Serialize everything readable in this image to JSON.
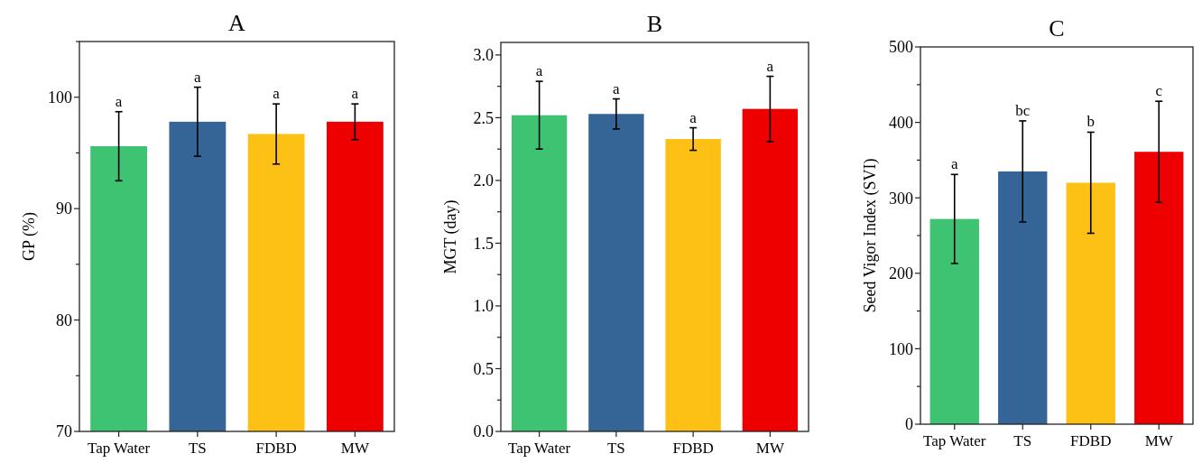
{
  "chart_data": [
    {
      "type": "bar",
      "title": "A",
      "ylabel": "GP (%)",
      "categories": [
        "Tap Water",
        "TS",
        "FDBD",
        "MW"
      ],
      "values": [
        95.6,
        97.8,
        96.7,
        97.8
      ],
      "colors": [
        "#3dc371",
        "#346596",
        "#fcc114",
        "#ee0000"
      ],
      "errors": [
        3.1,
        3.1,
        2.7,
        1.6
      ],
      "ylim": [
        70,
        105
      ],
      "yticks": [
        70,
        {
          "value": 75,
          "label": null
        },
        80,
        {
          "value": 85,
          "label": null
        },
        90,
        {
          "value": 95,
          "label": null
        },
        100,
        {
          "value": 105,
          "label": null
        }
      ],
      "annotations": [
        {
          "text": "a",
          "x": "Tap Water",
          "y": 98.7
        },
        {
          "text": "a",
          "x": "TS",
          "y": 100.9
        },
        {
          "text": "a",
          "x": "FDBD",
          "y": 99.4
        },
        {
          "text": "a",
          "x": "MW",
          "y": 99.4
        }
      ]
    },
    {
      "type": "bar",
      "title": "B",
      "ylabel": "MGT (day)",
      "categories": [
        "Tap Water",
        "TS",
        "FDBD",
        "MW"
      ],
      "values": [
        2.52,
        2.53,
        2.33,
        2.57
      ],
      "colors": [
        "#3dc371",
        "#346596",
        "#fcc114",
        "#ee0000"
      ],
      "errors": [
        0.27,
        0.12,
        0.09,
        0.26
      ],
      "ylim": [
        0,
        3.1
      ],
      "yticks": [
        {
          "value": 0,
          "label": "0.0"
        },
        {
          "value": 0.25,
          "label": null
        },
        {
          "value": 0.5,
          "label": "0.5"
        },
        {
          "value": 0.75,
          "label": null
        },
        {
          "value": 1,
          "label": "1.0"
        },
        {
          "value": 1.25,
          "label": null
        },
        {
          "value": 1.5,
          "label": "1.5"
        },
        {
          "value": 1.75,
          "label": null
        },
        {
          "value": 2,
          "label": "2.0"
        },
        {
          "value": 2.25,
          "label": null
        },
        {
          "value": 2.5,
          "label": "2.5"
        },
        {
          "value": 2.75,
          "label": null
        },
        {
          "value": 3,
          "label": "3.0"
        }
      ],
      "annotations": [
        {
          "text": "a",
          "x": "Tap Water",
          "y": 2.79
        },
        {
          "text": "a",
          "x": "TS",
          "y": 2.65
        },
        {
          "text": "a",
          "x": "FDBD",
          "y": 2.42
        },
        {
          "text": "a",
          "x": "MW",
          "y": 2.83
        }
      ]
    },
    {
      "type": "bar",
      "title": "C",
      "ylabel": "Seed Vigor Index (SVI)",
      "categories": [
        "Tap Water",
        "TS",
        "FDBD",
        "MW"
      ],
      "values": [
        272,
        335,
        320,
        361
      ],
      "colors": [
        "#3dc371",
        "#346596",
        "#fcc114",
        "#ee0000"
      ],
      "errors": [
        59,
        67,
        67,
        67
      ],
      "ylim": [
        0,
        500
      ],
      "yticks": [
        0,
        {
          "value": 50,
          "label": null
        },
        100,
        {
          "value": 150,
          "label": null
        },
        200,
        {
          "value": 250,
          "label": null
        },
        300,
        {
          "value": 350,
          "label": null
        },
        400,
        {
          "value": 450,
          "label": null
        },
        500
      ],
      "annotations": [
        {
          "text": "a",
          "x": "Tap Water",
          "y": 331
        },
        {
          "text": "bc",
          "x": "TS",
          "y": 402
        },
        {
          "text": "b",
          "x": "FDBD",
          "y": 387
        },
        {
          "text": "c",
          "x": "MW",
          "y": 428
        }
      ]
    }
  ]
}
